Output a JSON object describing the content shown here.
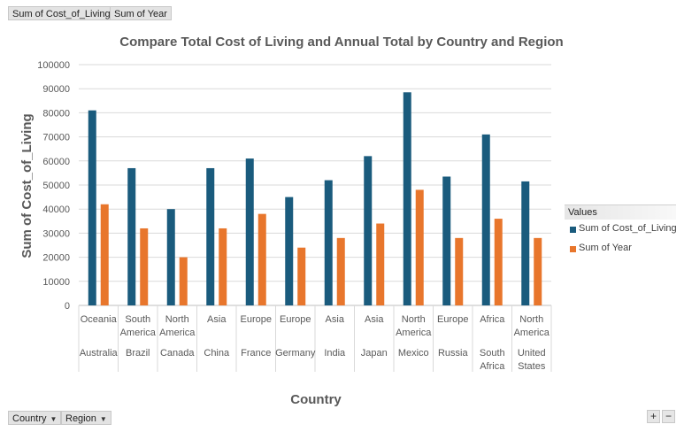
{
  "pivot": {
    "value_fields": [
      "Sum of Cost_of_Living",
      "Sum of Year"
    ],
    "row_fields": [
      {
        "label": "Country",
        "icon": "dropdown-arrow-icon"
      },
      {
        "label": "Region",
        "icon": "dropdown-arrow-icon"
      }
    ],
    "legend_header": "Values",
    "zoom": {
      "plus": "+",
      "minus": "−"
    }
  },
  "chart_data": {
    "type": "bar",
    "title": "Compare Total Cost of Living and Annual Total by Country and Region",
    "xlabel": "Country",
    "ylabel": "Sum of Cost_of_Living",
    "ylim": [
      0,
      100000
    ],
    "yticks": [
      "0",
      "10000",
      "20000",
      "30000",
      "40000",
      "50000",
      "60000",
      "70000",
      "80000",
      "90000",
      "100000"
    ],
    "grid": true,
    "legend_position": "right",
    "categories": [
      {
        "region": [
          "Oceania"
        ],
        "country": [
          "Australia"
        ]
      },
      {
        "region": [
          "South",
          "America"
        ],
        "country": [
          "Brazil"
        ]
      },
      {
        "region": [
          "North",
          "America"
        ],
        "country": [
          "Canada"
        ]
      },
      {
        "region": [
          "Asia"
        ],
        "country": [
          "China"
        ]
      },
      {
        "region": [
          "Europe"
        ],
        "country": [
          "France"
        ]
      },
      {
        "region": [
          "Europe"
        ],
        "country": [
          "Germany"
        ]
      },
      {
        "region": [
          "Asia"
        ],
        "country": [
          "India"
        ]
      },
      {
        "region": [
          "Asia"
        ],
        "country": [
          "Japan"
        ]
      },
      {
        "region": [
          "North",
          "America"
        ],
        "country": [
          "Mexico"
        ]
      },
      {
        "region": [
          "Europe"
        ],
        "country": [
          "Russia"
        ]
      },
      {
        "region": [
          "Africa"
        ],
        "country": [
          "South",
          "Africa"
        ]
      },
      {
        "region": [
          "North",
          "America"
        ],
        "country": [
          "United",
          "States"
        ]
      }
    ],
    "series": [
      {
        "name": "Sum of Cost_of_Living",
        "color": "#1a5b7d",
        "values": [
          81000,
          57000,
          40000,
          57000,
          61000,
          45000,
          52000,
          62000,
          88500,
          53500,
          71000,
          51500
        ]
      },
      {
        "name": "Sum of Year",
        "color": "#e8762c",
        "values": [
          42000,
          32000,
          20000,
          32000,
          38000,
          24000,
          28000,
          34000,
          48000,
          28000,
          36000,
          28000
        ]
      }
    ]
  }
}
